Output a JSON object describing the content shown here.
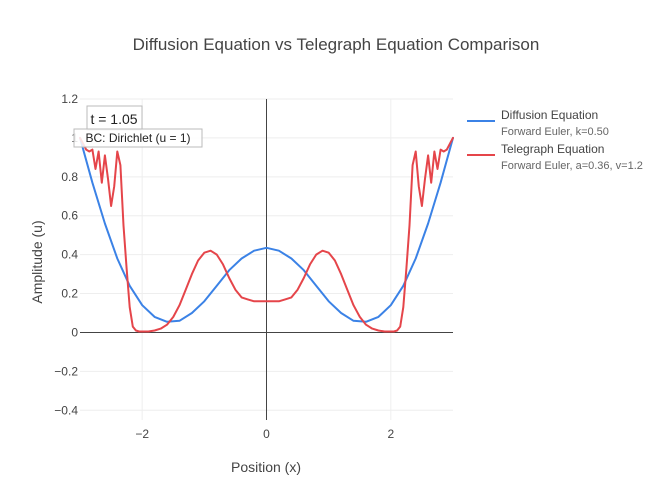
{
  "chart_data": {
    "type": "line",
    "title": "Diffusion Equation vs Telegraph Equation Comparison",
    "xlabel": "Position (x)",
    "ylabel": "Amplitude (u)",
    "xlim": [
      -3.0,
      3.0
    ],
    "ylim": [
      -0.45,
      1.2
    ],
    "x_ticks": [
      -2,
      0,
      2
    ],
    "x_tick_labels": [
      "−2",
      "0",
      "2"
    ],
    "y_ticks": [
      -0.4,
      -0.2,
      0,
      0.2,
      0.4,
      0.6,
      0.8,
      1.0,
      1.2
    ],
    "y_tick_labels": [
      "−0.4",
      "−0.2",
      "0",
      "0.2",
      "0.4",
      "0.6",
      "0.8",
      "1",
      "1.2"
    ],
    "grid": true,
    "legend_position": "top-right, outside plot",
    "annotations": {
      "time": "t = 1.05",
      "boundary": "BC: Dirichlet (u = 1)"
    },
    "series": [
      {
        "name": "Diffusion Equation",
        "subtitle": "Forward Euler, k=0.50",
        "color": "#3b82e6",
        "x": [
          -3.0,
          -2.8,
          -2.6,
          -2.4,
          -2.2,
          -2.0,
          -1.8,
          -1.6,
          -1.4,
          -1.2,
          -1.0,
          -0.8,
          -0.6,
          -0.4,
          -0.2,
          0.0,
          0.2,
          0.4,
          0.6,
          0.8,
          1.0,
          1.2,
          1.4,
          1.6,
          1.8,
          2.0,
          2.2,
          2.4,
          2.6,
          2.8,
          3.0
        ],
        "y": [
          1.0,
          0.77,
          0.56,
          0.38,
          0.24,
          0.14,
          0.08,
          0.055,
          0.06,
          0.1,
          0.16,
          0.24,
          0.32,
          0.38,
          0.42,
          0.435,
          0.42,
          0.38,
          0.32,
          0.24,
          0.16,
          0.1,
          0.06,
          0.055,
          0.08,
          0.14,
          0.24,
          0.38,
          0.56,
          0.77,
          1.0
        ]
      },
      {
        "name": "Telegraph Equation",
        "subtitle": "Forward Euler, a=0.36, v=1.2",
        "color": "#e5454a",
        "x": [
          -3.0,
          -2.95,
          -2.9,
          -2.85,
          -2.8,
          -2.75,
          -2.7,
          -2.65,
          -2.6,
          -2.55,
          -2.5,
          -2.45,
          -2.4,
          -2.35,
          -2.3,
          -2.25,
          -2.2,
          -2.15,
          -2.1,
          -2.05,
          -2.0,
          -1.9,
          -1.8,
          -1.7,
          -1.6,
          -1.5,
          -1.4,
          -1.3,
          -1.2,
          -1.1,
          -1.0,
          -0.9,
          -0.8,
          -0.7,
          -0.6,
          -0.5,
          -0.4,
          -0.3,
          -0.2,
          -0.1,
          0.0,
          0.1,
          0.2,
          0.3,
          0.4,
          0.5,
          0.6,
          0.7,
          0.8,
          0.9,
          1.0,
          1.1,
          1.2,
          1.3,
          1.4,
          1.5,
          1.6,
          1.7,
          1.8,
          1.9,
          2.0,
          2.05,
          2.1,
          2.15,
          2.2,
          2.25,
          2.3,
          2.35,
          2.4,
          2.45,
          2.5,
          2.55,
          2.6,
          2.65,
          2.7,
          2.75,
          2.8,
          2.85,
          2.9,
          2.95,
          3.0
        ],
        "y": [
          1.0,
          0.97,
          0.94,
          0.93,
          0.94,
          0.84,
          0.93,
          0.77,
          0.91,
          0.79,
          0.65,
          0.75,
          0.93,
          0.86,
          0.55,
          0.33,
          0.13,
          0.03,
          0.01,
          0.005,
          0.005,
          0.005,
          0.01,
          0.02,
          0.04,
          0.08,
          0.14,
          0.22,
          0.3,
          0.37,
          0.41,
          0.42,
          0.4,
          0.35,
          0.28,
          0.22,
          0.18,
          0.17,
          0.16,
          0.16,
          0.16,
          0.16,
          0.16,
          0.17,
          0.18,
          0.22,
          0.28,
          0.35,
          0.4,
          0.42,
          0.41,
          0.37,
          0.3,
          0.22,
          0.14,
          0.08,
          0.04,
          0.02,
          0.01,
          0.005,
          0.005,
          0.005,
          0.01,
          0.03,
          0.13,
          0.33,
          0.55,
          0.86,
          0.93,
          0.75,
          0.65,
          0.79,
          0.91,
          0.77,
          0.93,
          0.84,
          0.94,
          0.93,
          0.94,
          0.97,
          1.0
        ]
      }
    ]
  }
}
